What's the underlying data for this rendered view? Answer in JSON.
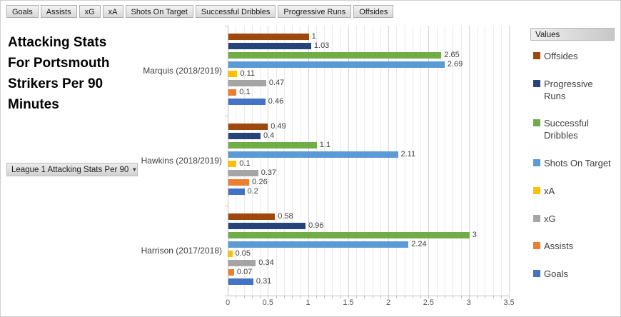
{
  "filter_bar": {
    "buttons": [
      {
        "label": "Goals"
      },
      {
        "label": "Assists"
      },
      {
        "label": "xG"
      },
      {
        "label": "xA"
      },
      {
        "label": "Shots On Target"
      },
      {
        "label": "Successful Dribbles"
      },
      {
        "label": "Progressive Runs"
      },
      {
        "label": "Offsides"
      }
    ]
  },
  "title": {
    "text": "Attacking Stats For Portsmouth Strikers Per 90 Minutes"
  },
  "axis_field_button": {
    "label": "League 1 Attacking Stats Per 90",
    "dropdown_icon": "▼"
  },
  "legend": {
    "header": "Values",
    "position": "right"
  },
  "chart_data": {
    "type": "bar",
    "orientation": "horizontal",
    "title": "Attacking Stats For Portsmouth Strikers Per 90 Minutes",
    "categories": [
      "Marquis (2018/2019)",
      "Hawkins (2018/2019)",
      "Harrison (2017/2018)"
    ],
    "series": [
      {
        "name": "Offsides",
        "color": "#9E480E",
        "values": [
          1,
          0.49,
          0.58
        ]
      },
      {
        "name": "Progressive Runs",
        "color": "#264478",
        "values": [
          1.03,
          0.4,
          0.96
        ]
      },
      {
        "name": "Successful Dribbles",
        "color": "#70AD47",
        "values": [
          2.65,
          1.1,
          3
        ]
      },
      {
        "name": "Shots On Target",
        "color": "#5B9BD5",
        "values": [
          2.69,
          2.11,
          2.24
        ]
      },
      {
        "name": "xA",
        "color": "#FFC000",
        "values": [
          0.11,
          0.1,
          0.05
        ]
      },
      {
        "name": "xG",
        "color": "#A5A5A5",
        "values": [
          0.47,
          0.37,
          0.34
        ]
      },
      {
        "name": "Assists",
        "color": "#ED7D31",
        "values": [
          0.1,
          0.26,
          0.07
        ]
      },
      {
        "name": "Goals",
        "color": "#4472C4",
        "values": [
          0.46,
          0.2,
          0.31
        ]
      }
    ],
    "xaxis": {
      "min": 0,
      "max": 3.5,
      "major_step": 0.5,
      "minor_step": 0.1,
      "tick_labels": [
        "0",
        "0.5",
        "1",
        "1.5",
        "2",
        "2.5",
        "3",
        "3.5"
      ]
    },
    "grid": true,
    "legend_position": "right",
    "data_labels": true
  }
}
